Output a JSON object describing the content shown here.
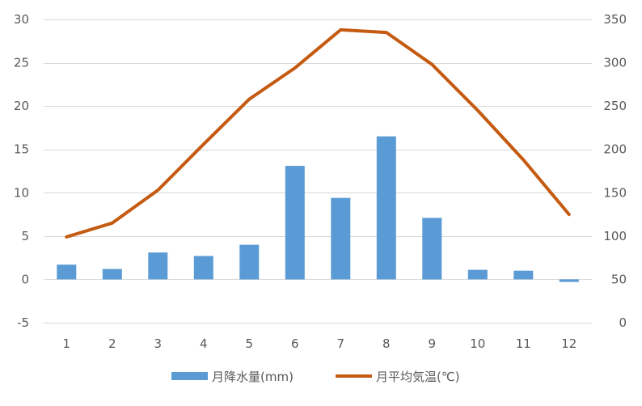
{
  "chart_data": {
    "type": "bar",
    "categories": [
      "1",
      "2",
      "3",
      "4",
      "5",
      "6",
      "7",
      "8",
      "9",
      "10",
      "11",
      "12"
    ],
    "series": [
      {
        "name": "月降水量(mm)",
        "type": "bar",
        "axis": "left",
        "color": "#5b9bd5",
        "values": [
          1.7,
          1.2,
          3.1,
          2.7,
          4.0,
          13.1,
          9.4,
          16.5,
          7.1,
          1.1,
          1.0,
          -0.3
        ]
      },
      {
        "name": "月平均気温(℃)",
        "type": "line",
        "axis": "right",
        "color": "#c55a11",
        "values": [
          99,
          115,
          153,
          206,
          258,
          294,
          338,
          335,
          298,
          245,
          188,
          125
        ]
      }
    ],
    "y_left": {
      "min": -5,
      "max": 30,
      "ticks": [
        -5,
        0,
        5,
        10,
        15,
        20,
        25,
        30
      ]
    },
    "y_right": {
      "min": 0,
      "max": 350,
      "ticks": [
        0,
        50,
        100,
        150,
        200,
        250,
        300,
        350
      ]
    },
    "grid": true,
    "legend_position": "bottom",
    "title": "",
    "xlabel": "",
    "ylabel": ""
  }
}
